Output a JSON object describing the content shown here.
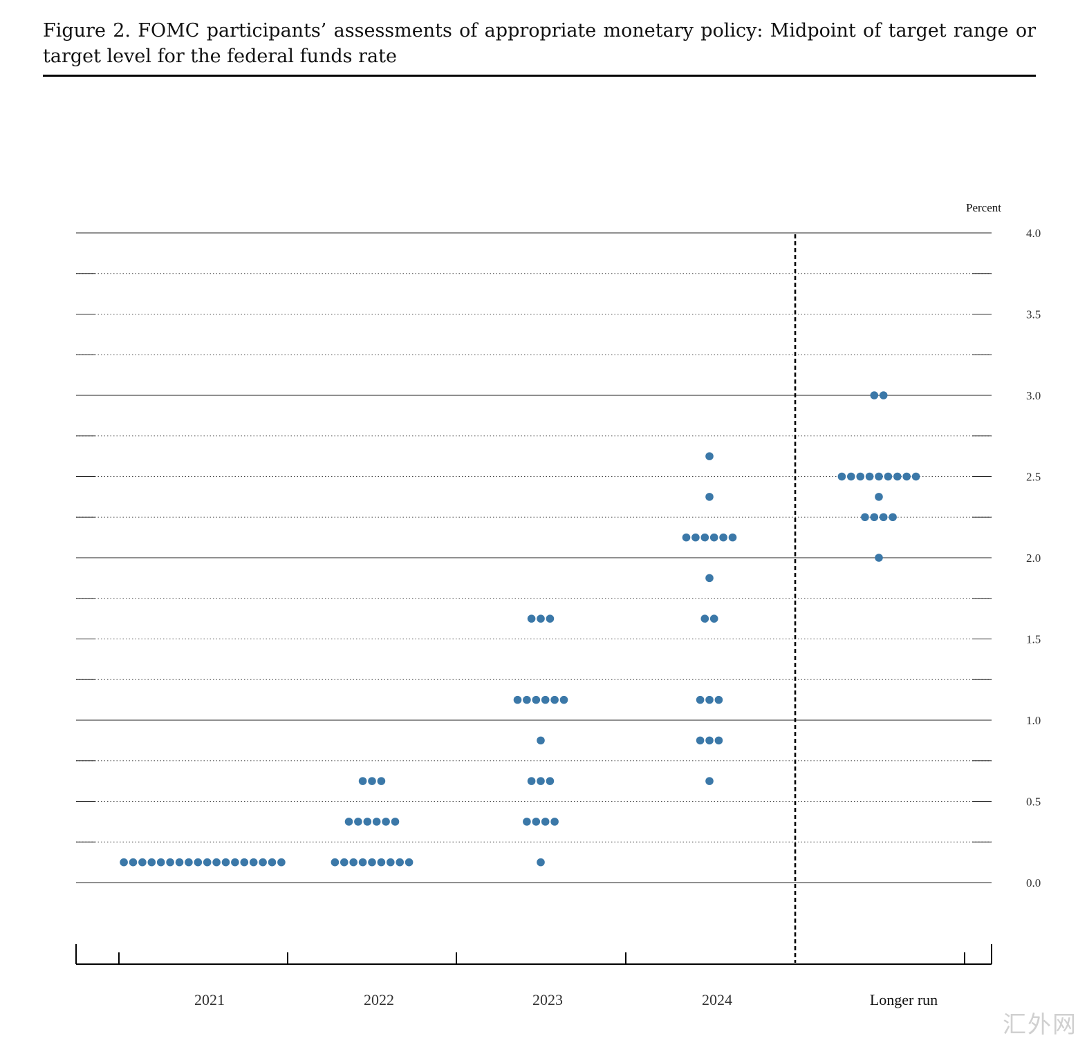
{
  "figure": {
    "title": "Figure 2.  FOMC participants’ assessments of appropriate monetary policy:  Midpoint of target range or target level for the federal funds rate"
  },
  "watermark": "汇外网",
  "chart_data": {
    "type": "scatter",
    "ylabel": "Percent",
    "ylim": [
      0,
      4
    ],
    "y_ticks": [
      "0.0",
      "0.5",
      "1.0",
      "1.5",
      "2.0",
      "2.5",
      "3.0",
      "3.5",
      "4.0"
    ],
    "categories": [
      "2021",
      "2022",
      "2023",
      "2024",
      "Longer run"
    ],
    "grid": "dotted at 0.25 intervals, solid at 0, 1, 2, 3, 4",
    "dot_color": "#3b78a8",
    "separator_before": "Longer run",
    "series": [
      {
        "category": "2021",
        "dots": [
          {
            "y": 0.125,
            "count": 18
          }
        ]
      },
      {
        "category": "2022",
        "dots": [
          {
            "y": 0.125,
            "count": 9
          },
          {
            "y": 0.375,
            "count": 6
          },
          {
            "y": 0.625,
            "count": 3
          }
        ]
      },
      {
        "category": "2023",
        "dots": [
          {
            "y": 0.125,
            "count": 1
          },
          {
            "y": 0.375,
            "count": 4
          },
          {
            "y": 0.625,
            "count": 3
          },
          {
            "y": 0.875,
            "count": 1
          },
          {
            "y": 1.125,
            "count": 6
          },
          {
            "y": 1.625,
            "count": 3
          }
        ]
      },
      {
        "category": "2024",
        "dots": [
          {
            "y": 0.625,
            "count": 1
          },
          {
            "y": 0.875,
            "count": 3
          },
          {
            "y": 1.125,
            "count": 3
          },
          {
            "y": 1.625,
            "count": 2
          },
          {
            "y": 1.875,
            "count": 1
          },
          {
            "y": 2.125,
            "count": 6
          },
          {
            "y": 2.375,
            "count": 1
          },
          {
            "y": 2.625,
            "count": 1
          }
        ]
      },
      {
        "category": "Longer run",
        "dots": [
          {
            "y": 2.0,
            "count": 1
          },
          {
            "y": 2.25,
            "count": 4
          },
          {
            "y": 2.375,
            "count": 1
          },
          {
            "y": 2.5,
            "count": 9
          },
          {
            "y": 3.0,
            "count": 2
          }
        ]
      }
    ]
  }
}
